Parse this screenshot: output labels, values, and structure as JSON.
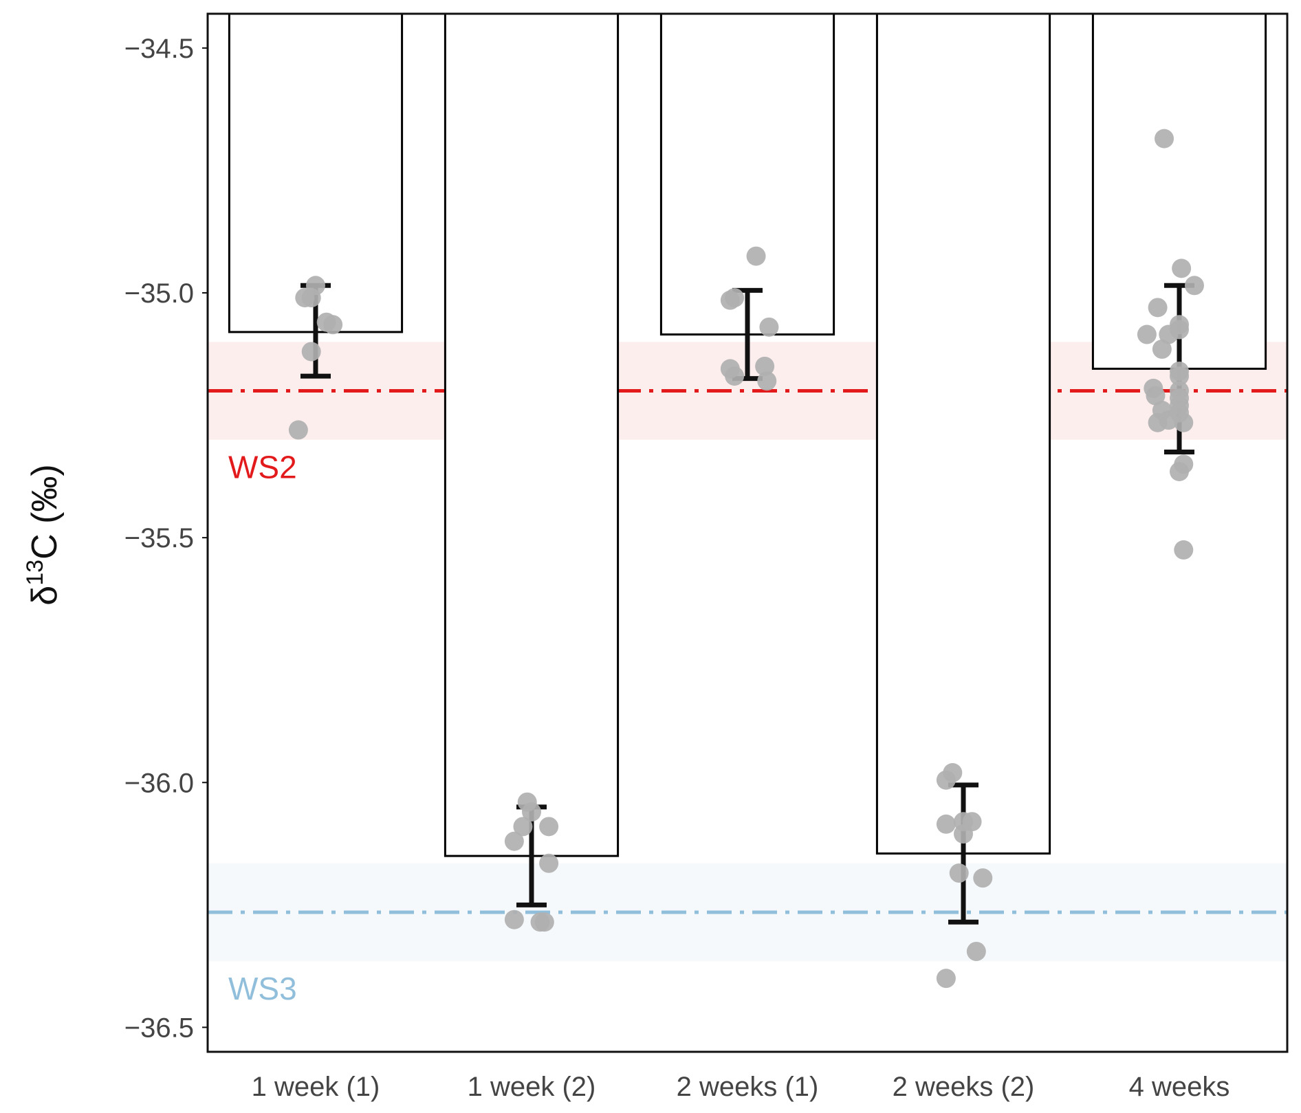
{
  "chart_data": {
    "type": "bar",
    "title": "",
    "xlabel": "",
    "ylabel": {
      "prefix": "δ",
      "superscript": "13",
      "suffix": "C (‰)"
    },
    "ylim": [
      -36.55,
      -34.43
    ],
    "yticks": [
      -34.5,
      -35.0,
      -35.5,
      -36.0,
      -36.5
    ],
    "ytick_labels": [
      "−34.5",
      "−35.0",
      "−35.5",
      "−36.0",
      "−36.5"
    ],
    "categories": [
      "1 week (1)",
      "1 week (2)",
      "2 weeks (1)",
      "2 weeks (2)",
      "4 weeks"
    ],
    "values": [
      -35.08,
      -36.15,
      -35.085,
      -36.145,
      -35.155
    ],
    "error_bars": [
      {
        "low": -35.17,
        "high": -34.985
      },
      {
        "low": -36.25,
        "high": -36.05
      },
      {
        "low": -35.175,
        "high": -34.995
      },
      {
        "low": -36.285,
        "high": -36.005
      },
      {
        "low": -35.325,
        "high": -34.985
      }
    ],
    "points": [
      [
        {
          "dx": 0.0,
          "y": -34.985
        },
        {
          "dx": -0.05,
          "y": -35.01
        },
        {
          "dx": -0.02,
          "y": -35.01
        },
        {
          "dx": 0.05,
          "y": -35.06
        },
        {
          "dx": 0.08,
          "y": -35.065
        },
        {
          "dx": -0.02,
          "y": -35.12
        },
        {
          "dx": -0.08,
          "y": -35.28
        }
      ],
      [
        {
          "dx": -0.02,
          "y": -36.04
        },
        {
          "dx": 0.0,
          "y": -36.06
        },
        {
          "dx": -0.04,
          "y": -36.09
        },
        {
          "dx": 0.08,
          "y": -36.09
        },
        {
          "dx": -0.08,
          "y": -36.12
        },
        {
          "dx": 0.08,
          "y": -36.165
        },
        {
          "dx": -0.08,
          "y": -36.28
        },
        {
          "dx": 0.04,
          "y": -36.285
        },
        {
          "dx": 0.06,
          "y": -36.285
        }
      ],
      [
        {
          "dx": 0.04,
          "y": -34.925
        },
        {
          "dx": -0.08,
          "y": -35.015
        },
        {
          "dx": -0.06,
          "y": -35.01
        },
        {
          "dx": 0.1,
          "y": -35.07
        },
        {
          "dx": -0.08,
          "y": -35.155
        },
        {
          "dx": -0.06,
          "y": -35.17
        },
        {
          "dx": 0.08,
          "y": -35.15
        },
        {
          "dx": 0.09,
          "y": -35.18
        }
      ],
      [
        {
          "dx": -0.05,
          "y": -35.98
        },
        {
          "dx": -0.08,
          "y": -35.995
        },
        {
          "dx": -0.08,
          "y": -36.085
        },
        {
          "dx": 0.0,
          "y": -36.08
        },
        {
          "dx": 0.04,
          "y": -36.08
        },
        {
          "dx": 0.0,
          "y": -36.105
        },
        {
          "dx": -0.02,
          "y": -36.185
        },
        {
          "dx": 0.09,
          "y": -36.195
        },
        {
          "dx": 0.06,
          "y": -36.345
        },
        {
          "dx": -0.08,
          "y": -36.4
        }
      ],
      [
        {
          "dx": -0.07,
          "y": -34.685
        },
        {
          "dx": 0.01,
          "y": -34.95
        },
        {
          "dx": 0.07,
          "y": -34.985
        },
        {
          "dx": -0.1,
          "y": -35.03
        },
        {
          "dx": 0.0,
          "y": -35.065
        },
        {
          "dx": 0.0,
          "y": -35.075
        },
        {
          "dx": -0.05,
          "y": -35.085
        },
        {
          "dx": -0.15,
          "y": -35.085
        },
        {
          "dx": -0.08,
          "y": -35.115
        },
        {
          "dx": 0.0,
          "y": -35.16
        },
        {
          "dx": 0.0,
          "y": -35.17
        },
        {
          "dx": -0.12,
          "y": -35.195
        },
        {
          "dx": -0.11,
          "y": -35.21
        },
        {
          "dx": 0.0,
          "y": -35.2
        },
        {
          "dx": 0.0,
          "y": -35.215
        },
        {
          "dx": 0.0,
          "y": -35.23
        },
        {
          "dx": -0.08,
          "y": -35.24
        },
        {
          "dx": 0.0,
          "y": -35.245
        },
        {
          "dx": -0.05,
          "y": -35.26
        },
        {
          "dx": -0.1,
          "y": -35.265
        },
        {
          "dx": 0.02,
          "y": -35.265
        },
        {
          "dx": 0.02,
          "y": -35.35
        },
        {
          "dx": 0.0,
          "y": -35.365
        },
        {
          "dx": 0.02,
          "y": -35.525
        }
      ]
    ],
    "reference_lines": [
      {
        "label": "WS2",
        "value": -35.2,
        "band": [
          -35.3,
          -35.1
        ],
        "color": "#e31a1c",
        "band_color": "#fdeeee"
      },
      {
        "label": "WS3",
        "value": -36.265,
        "band": [
          -36.365,
          -36.165
        ],
        "color": "#91bfdb",
        "band_color": "#f5f9fb"
      }
    ],
    "bar_fill": "#ffffff",
    "bar_edge": "#000000",
    "point_color": "#b0b0b0",
    "errorbar_color": "#111111",
    "grid": false,
    "legend": "none"
  }
}
